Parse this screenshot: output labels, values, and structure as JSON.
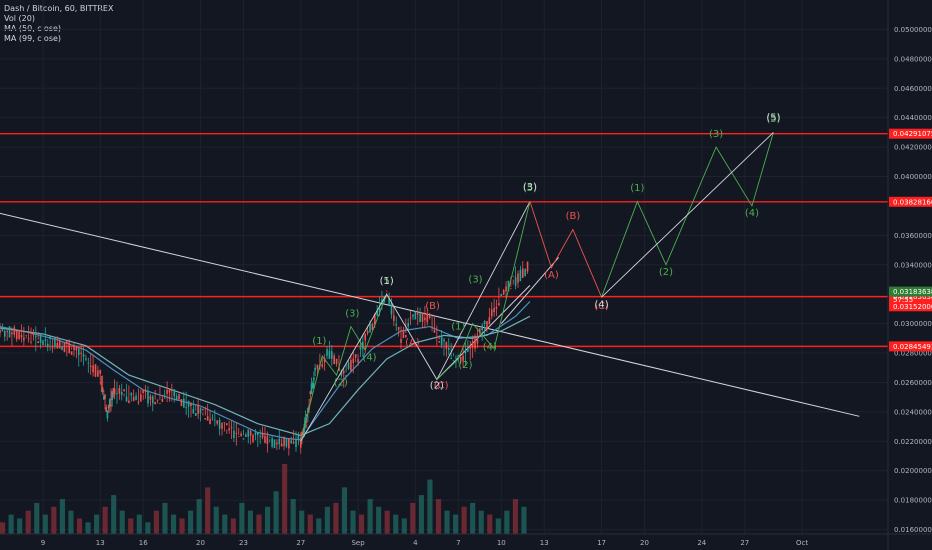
{
  "legend": {
    "symbol": "Dash / Bitcoin, 60, BITTREX",
    "vol": "Vol (20)",
    "ma50": "MA (50, close)",
    "ma99": "MA (99, close)"
  },
  "chart_data": {
    "type": "line",
    "ylim": [
      0.0157,
      0.052
    ],
    "y_ticks": [
      "0.05000000",
      "0.04800000",
      "0.04600000",
      "0.04400000",
      "0.04200000",
      "0.04000000",
      "0.03600000",
      "0.03400000",
      "0.03000000",
      "0.02800000",
      "0.02600000",
      "0.02400000",
      "0.02200000",
      "0.02000000",
      "0.01800000",
      "0.01600000"
    ],
    "y_tick_values": [
      0.05,
      0.048,
      0.046,
      0.044,
      0.042,
      0.04,
      0.036,
      0.034,
      0.03,
      0.028,
      0.026,
      0.024,
      0.022,
      0.02,
      0.018,
      0.016
    ],
    "x_ticks": [
      "9",
      "13",
      "16",
      "20",
      "23",
      "27",
      "Sep",
      "4",
      "7",
      "10",
      "13",
      "17",
      "20",
      "24",
      "27",
      "Oct"
    ],
    "x_tick_values": [
      9,
      13,
      16,
      20,
      23,
      27,
      31,
      35,
      38,
      41,
      44,
      48,
      51,
      55,
      58,
      62
    ],
    "xlim": [
      6,
      68
    ],
    "price_path": [
      [
        6,
        0.0296
      ],
      [
        7,
        0.0293
      ],
      [
        8,
        0.029
      ],
      [
        9,
        0.0289
      ],
      [
        10,
        0.0287
      ],
      [
        11,
        0.0283
      ],
      [
        12,
        0.0275
      ],
      [
        13,
        0.0265
      ],
      [
        13.5,
        0.024
      ],
      [
        14,
        0.0255
      ],
      [
        15,
        0.025
      ],
      [
        16,
        0.0251
      ],
      [
        17,
        0.0248
      ],
      [
        18,
        0.0255
      ],
      [
        19,
        0.0245
      ],
      [
        20,
        0.024
      ],
      [
        21,
        0.0233
      ],
      [
        22,
        0.0227
      ],
      [
        23,
        0.0225
      ],
      [
        24,
        0.0222
      ],
      [
        25,
        0.022
      ],
      [
        26,
        0.0219
      ],
      [
        27,
        0.022
      ],
      [
        27.5,
        0.024
      ],
      [
        28,
        0.027
      ],
      [
        29,
        0.028
      ],
      [
        30,
        0.0265
      ],
      [
        31,
        0.0278
      ],
      [
        32,
        0.03
      ],
      [
        33,
        0.032
      ],
      [
        34,
        0.029
      ],
      [
        35,
        0.0305
      ],
      [
        36,
        0.0303
      ],
      [
        37,
        0.0285
      ],
      [
        38,
        0.0275
      ],
      [
        39,
        0.0285
      ],
      [
        40,
        0.03
      ],
      [
        41,
        0.032
      ],
      [
        42,
        0.033
      ],
      [
        43,
        0.034
      ]
    ],
    "ma50_path": [
      [
        6,
        0.0298
      ],
      [
        8,
        0.0294
      ],
      [
        10,
        0.0289
      ],
      [
        12,
        0.0282
      ],
      [
        14,
        0.0268
      ],
      [
        16,
        0.0255
      ],
      [
        18,
        0.0249
      ],
      [
        20,
        0.0244
      ],
      [
        22,
        0.0235
      ],
      [
        24,
        0.0226
      ],
      [
        26,
        0.0222
      ],
      [
        27,
        0.0221
      ],
      [
        28,
        0.0235
      ],
      [
        30,
        0.0262
      ],
      [
        32,
        0.0283
      ],
      [
        34,
        0.0295
      ],
      [
        36,
        0.0298
      ],
      [
        38,
        0.029
      ],
      [
        40,
        0.0292
      ],
      [
        42,
        0.0305
      ],
      [
        43,
        0.0315
      ]
    ],
    "ma99_path": [
      [
        6,
        0.0297
      ],
      [
        9,
        0.0293
      ],
      [
        12,
        0.0285
      ],
      [
        15,
        0.0265
      ],
      [
        18,
        0.0255
      ],
      [
        21,
        0.0245
      ],
      [
        24,
        0.0232
      ],
      [
        27,
        0.0224
      ],
      [
        29,
        0.0232
      ],
      [
        31,
        0.0255
      ],
      [
        33,
        0.0276
      ],
      [
        35,
        0.0287
      ],
      [
        37,
        0.0292
      ],
      [
        39,
        0.029
      ],
      [
        41,
        0.0295
      ],
      [
        43,
        0.0305
      ]
    ],
    "volume": [
      3,
      5,
      4,
      6,
      8,
      5,
      7,
      9,
      6,
      4,
      3,
      5,
      7,
      10,
      6,
      4,
      5,
      3,
      6,
      8,
      5,
      4,
      6,
      9,
      12,
      7,
      5,
      4,
      8,
      6,
      5,
      7,
      11,
      18,
      9,
      6,
      5,
      4,
      7,
      8,
      12,
      6,
      5,
      9,
      7,
      6,
      5,
      4,
      8,
      10,
      14,
      9,
      6,
      5,
      7,
      8,
      6,
      5,
      4,
      6,
      9,
      7
    ],
    "horizontal_levels": [
      {
        "value": 0.04291075,
        "label": "0.04291075",
        "color": "#ff1f1f"
      },
      {
        "value": 0.0382816,
        "label": "0.03828160",
        "color": "#ff1f1f"
      },
      {
        "value": 0.03183638,
        "label": "0.03183638",
        "color": "#ff1f1f"
      },
      {
        "value": 0.02845491,
        "label": "0.02845491",
        "color": "#ff1f1f"
      }
    ],
    "price_tags": [
      {
        "value": 0.03183638,
        "label": "0.03183638",
        "color": "#2e7d32"
      },
      {
        "value": 0.03152,
        "label": "0.03152000",
        "color": "#ff1f1f"
      }
    ],
    "countdown": {
      "value": 0.03165,
      "label": "57:55"
    },
    "trendlines": [
      {
        "points": [
          [
            6,
            0.0375
          ],
          [
            66,
            0.0237
          ]
        ],
        "color": "#d1d4dc"
      },
      {
        "points": [
          [
            41,
            0.03
          ],
          [
            45,
            0.0345
          ]
        ],
        "color": "#d1d4dc"
      },
      {
        "points": [
          [
            36.5,
            0.0262
          ],
          [
            43,
            0.0326
          ]
        ],
        "color": "#d1d4dc"
      }
    ],
    "wave_paths": [
      {
        "color": "#4caf50",
        "points": [
          [
            27,
            0.022
          ],
          [
            28.5,
            0.0278
          ],
          [
            29.5,
            0.0265
          ],
          [
            30.5,
            0.0298
          ],
          [
            31.5,
            0.0282
          ],
          [
            33,
            0.032
          ]
        ]
      },
      {
        "color": "#d1d4dc",
        "points": [
          [
            27,
            0.022
          ],
          [
            33,
            0.032
          ],
          [
            36.5,
            0.0262
          ],
          [
            43,
            0.0383
          ]
        ]
      },
      {
        "color": "#4caf50",
        "points": [
          [
            36.5,
            0.0262
          ],
          [
            38,
            0.0276
          ],
          [
            39,
            0.03
          ],
          [
            40.5,
            0.0283
          ],
          [
            43,
            0.0383
          ]
        ]
      },
      {
        "color": "#ef5350",
        "points": [
          [
            43,
            0.0383
          ],
          [
            44.5,
            0.0338
          ],
          [
            46,
            0.0364
          ],
          [
            48,
            0.0318
          ]
        ]
      },
      {
        "color": "#4caf50",
        "points": [
          [
            48,
            0.0318
          ],
          [
            50.5,
            0.0383
          ],
          [
            52.5,
            0.034
          ],
          [
            56,
            0.042
          ],
          [
            58.5,
            0.038
          ],
          [
            60,
            0.043
          ]
        ]
      },
      {
        "color": "#d1d4dc",
        "points": [
          [
            48,
            0.0318
          ],
          [
            60,
            0.043
          ]
        ]
      }
    ],
    "wave_labels": [
      {
        "text": "(1)",
        "x": 28.3,
        "y": 0.0286,
        "color": "#4caf50"
      },
      {
        "text": "(2)",
        "x": 29.8,
        "y": 0.0258,
        "color": "#4caf50"
      },
      {
        "text": "(3)",
        "x": 30.6,
        "y": 0.0305,
        "color": "#4caf50"
      },
      {
        "text": "(4)",
        "x": 31.8,
        "y": 0.0275,
        "color": "#4caf50"
      },
      {
        "text": "(5)",
        "x": 33,
        "y": 0.0327,
        "color": "#4caf50"
      },
      {
        "text": "(1)",
        "x": 33,
        "y": 0.0327,
        "color": "#d1d4dc"
      },
      {
        "text": "(A)",
        "x": 34.8,
        "y": 0.0285,
        "color": "#ef5350"
      },
      {
        "text": "(B)",
        "x": 36.2,
        "y": 0.031,
        "color": "#ef5350"
      },
      {
        "text": "(C)",
        "x": 36.8,
        "y": 0.0256,
        "color": "#ef5350"
      },
      {
        "text": "(2)",
        "x": 36.5,
        "y": 0.0256,
        "color": "#d1d4dc"
      },
      {
        "text": "(1)",
        "x": 38,
        "y": 0.0296,
        "color": "#4caf50"
      },
      {
        "text": "(2)",
        "x": 38.5,
        "y": 0.027,
        "color": "#4caf50"
      },
      {
        "text": "(3)",
        "x": 39.2,
        "y": 0.0328,
        "color": "#4caf50"
      },
      {
        "text": "(4)",
        "x": 40.2,
        "y": 0.0282,
        "color": "#4caf50"
      },
      {
        "text": "(5)",
        "x": 43,
        "y": 0.039,
        "color": "#4caf50"
      },
      {
        "text": "(3)",
        "x": 43,
        "y": 0.0391,
        "color": "#d1d4dc"
      },
      {
        "text": "(A)",
        "x": 44.5,
        "y": 0.0331,
        "color": "#ef5350"
      },
      {
        "text": "(B)",
        "x": 46,
        "y": 0.0371,
        "color": "#ef5350"
      },
      {
        "text": "(C)",
        "x": 48,
        "y": 0.031,
        "color": "#ef5350"
      },
      {
        "text": "(4)",
        "x": 48,
        "y": 0.0311,
        "color": "#d1d4dc"
      },
      {
        "text": "(1)",
        "x": 50.5,
        "y": 0.039,
        "color": "#4caf50"
      },
      {
        "text": "(2)",
        "x": 52.5,
        "y": 0.0333,
        "color": "#4caf50"
      },
      {
        "text": "(3)",
        "x": 56,
        "y": 0.0427,
        "color": "#4caf50"
      },
      {
        "text": "(4)",
        "x": 58.5,
        "y": 0.0373,
        "color": "#4caf50"
      },
      {
        "text": "(5)",
        "x": 60,
        "y": 0.0437,
        "color": "#4caf50"
      },
      {
        "text": "(5)",
        "x": 60,
        "y": 0.0438,
        "color": "#d1d4dc"
      }
    ]
  }
}
